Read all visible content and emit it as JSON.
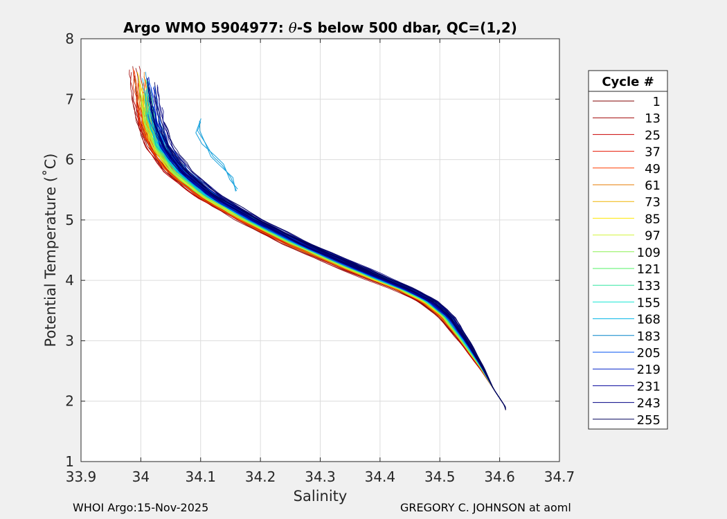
{
  "chart_data": {
    "type": "line",
    "title_prefix": "Argo WMO 5904977: ",
    "title_theta": "θ",
    "title_suffix": "-S below 500 dbar,  QC=(1,2)",
    "xlabel": "Salinity",
    "ylabel": "Potential Temperature (˚C)",
    "xlim": [
      33.9,
      34.7
    ],
    "ylim": [
      1,
      8
    ],
    "xticks": [
      "33.9",
      "34",
      "34.1",
      "34.2",
      "34.3",
      "34.4",
      "34.5",
      "34.6",
      "34.7"
    ],
    "yticks": [
      "1",
      "2",
      "3",
      "4",
      "5",
      "6",
      "7",
      "8"
    ],
    "grid": true,
    "legend_title": "Cycle #",
    "legend_position": "outside-right",
    "series": [
      {
        "name": "1",
        "color": "#800000",
        "cycle": 1
      },
      {
        "name": "13",
        "color": "#a00000",
        "cycle": 13
      },
      {
        "name": "25",
        "color": "#c80000",
        "cycle": 25
      },
      {
        "name": "37",
        "color": "#e61400",
        "cycle": 37
      },
      {
        "name": "49",
        "color": "#ff3c00",
        "cycle": 49
      },
      {
        "name": "61",
        "color": "#e67800",
        "cycle": 61
      },
      {
        "name": "73",
        "color": "#f0b400",
        "cycle": 73
      },
      {
        "name": "85",
        "color": "#ffe600",
        "cycle": 85
      },
      {
        "name": "97",
        "color": "#d2f53c",
        "cycle": 97
      },
      {
        "name": "109",
        "color": "#8cf050",
        "cycle": 109
      },
      {
        "name": "121",
        "color": "#50f064",
        "cycle": 121
      },
      {
        "name": "133",
        "color": "#32e6a0",
        "cycle": 133
      },
      {
        "name": "155",
        "color": "#14e6d2",
        "cycle": 155
      },
      {
        "name": "168",
        "color": "#00b4e6",
        "cycle": 168
      },
      {
        "name": "183",
        "color": "#0082c8",
        "cycle": 183
      },
      {
        "name": "205",
        "color": "#0050f0",
        "cycle": 205
      },
      {
        "name": "219",
        "color": "#0020c8",
        "cycle": 219
      },
      {
        "name": "231",
        "color": "#00009a",
        "cycle": 231
      },
      {
        "name": "243",
        "color": "#000082",
        "cycle": 243
      },
      {
        "name": "255",
        "color": "#00005a",
        "cycle": 255
      }
    ],
    "mean_curve": {
      "salinity": [
        34.002,
        34.008,
        34.015,
        34.03,
        34.06,
        34.11,
        34.18,
        34.26,
        34.33,
        34.39,
        34.44,
        34.48,
        34.51,
        34.54,
        34.57,
        34.59,
        34.61
      ],
      "temperature": [
        7.5,
        7.0,
        6.6,
        6.2,
        5.8,
        5.4,
        5.0,
        4.6,
        4.3,
        4.05,
        3.85,
        3.65,
        3.4,
        3.0,
        2.55,
        2.2,
        1.9
      ]
    },
    "anomaly_curve": {
      "salinity": [
        34.1,
        34.095,
        34.105,
        34.12,
        34.135,
        34.15,
        34.16
      ],
      "temperature": [
        6.65,
        6.45,
        6.25,
        6.05,
        5.9,
        5.7,
        5.5
      ]
    }
  },
  "footer": {
    "left": "WHOI Argo:15-Nov-2025",
    "right": "GREGORY C. JOHNSON at aoml"
  }
}
